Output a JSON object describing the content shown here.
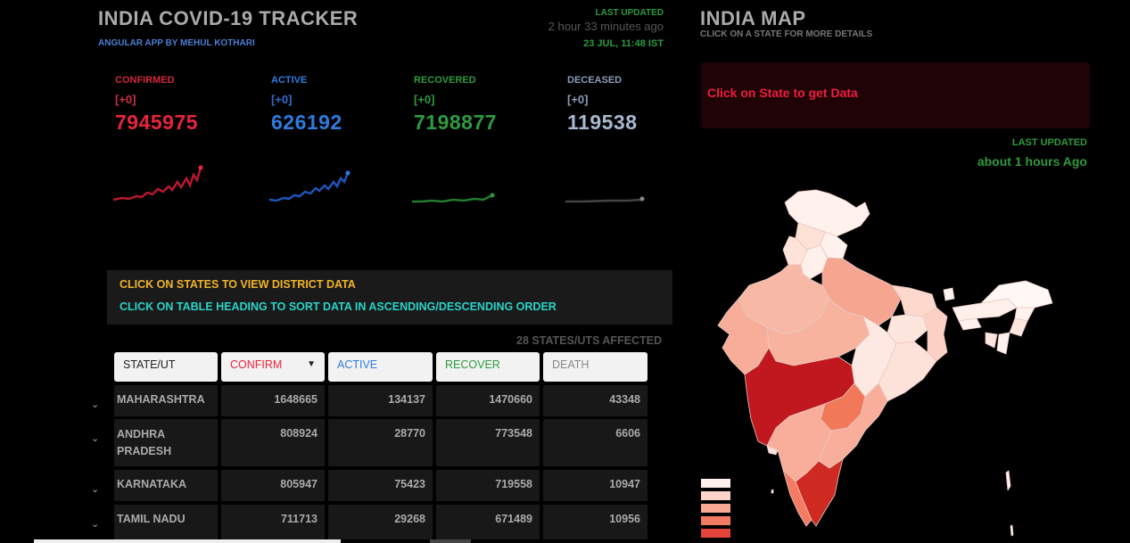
{
  "header": {
    "title": "INDIA COVID-19 TRACKER",
    "subtitle": "ANGULAR APP BY MEHUL KOTHARI",
    "last_updated_label": "LAST UPDATED",
    "last_updated_ago": "2 hour 33 minutes ago",
    "last_updated_date": "23 JUL, 11:48 IST"
  },
  "stats": {
    "confirmed": {
      "label": "CONFIRMED",
      "delta": "[+0]",
      "value": "7945975",
      "color": "#e8243c"
    },
    "active": {
      "label": "ACTIVE",
      "delta": "[+0]",
      "value": "626192",
      "color": "#2f7be0"
    },
    "recovered": {
      "label": "RECOVERED",
      "delta": "[+0]",
      "value": "7198877",
      "color": "#2e9a3e"
    },
    "deceased": {
      "label": "DECEASED",
      "delta": "[+0]",
      "value": "119538",
      "color": "#8a9bb8"
    }
  },
  "instructions": {
    "line1": "CLICK ON STATES TO VIEW DISTRICT DATA",
    "line2": "CLICK ON TABLE HEADING TO SORT DATA IN ASCENDING/DESCENDING ORDER"
  },
  "affected": "28 STATES/UTS AFFECTED",
  "table": {
    "headers": [
      "STATE/UT",
      "CONFIRM",
      "ACTIVE",
      "RECOVER",
      "DEATH"
    ],
    "header_colors": [
      "#222222",
      "#e8243c",
      "#2f7be0",
      "#2e9a3e",
      "#888888"
    ],
    "sort_caret": "▼",
    "rows": [
      {
        "state": "MAHARASHTRA",
        "confirm": "1648665",
        "active": "134137",
        "recover": "1470660",
        "death": "43348"
      },
      {
        "state": "ANDHRA PRADESH",
        "confirm": "808924",
        "active": "28770",
        "recover": "773548",
        "death": "6606"
      },
      {
        "state": "KARNATAKA",
        "confirm": "805947",
        "active": "75423",
        "recover": "719558",
        "death": "10947"
      },
      {
        "state": "TAMIL NADU",
        "confirm": "711713",
        "active": "29268",
        "recover": "671489",
        "death": "10956"
      }
    ]
  },
  "map": {
    "title": "INDIA MAP",
    "subtitle": "CLICK ON A STATE FOR MORE DETAILS",
    "prompt": "Click on State to get Data",
    "last_updated_label": "LAST UPDATED",
    "last_updated_value": "about 1 hours Ago",
    "legend_colors": [
      "#fff2ee",
      "#fdd6c9",
      "#f8a893",
      "#f27b63",
      "#e5443a"
    ]
  },
  "icons": {
    "chevron": "chevron-down-icon"
  }
}
